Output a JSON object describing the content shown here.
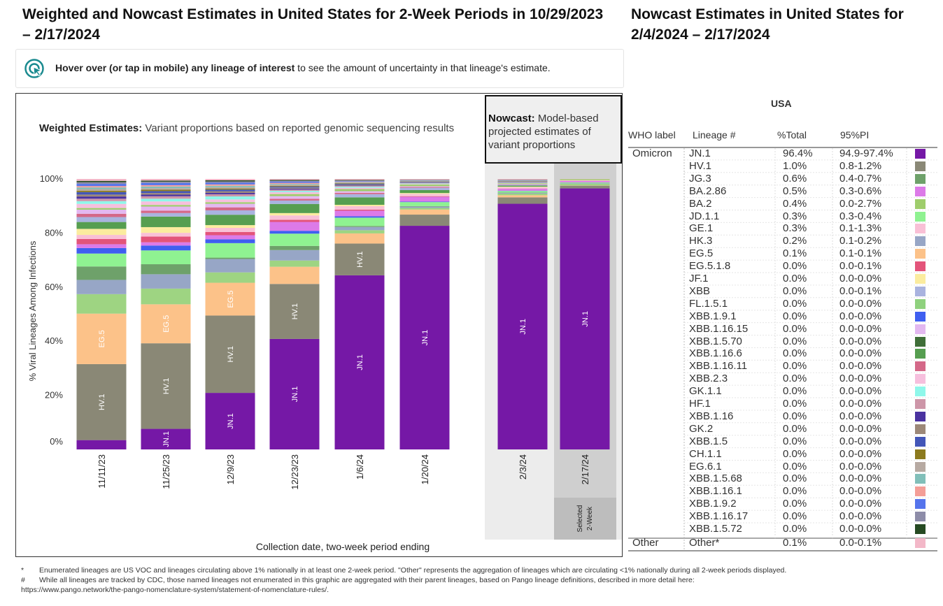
{
  "titles": {
    "left": "Weighted and Nowcast Estimates in United States for 2-Week Periods in 10/29/2023 – 2/17/2024",
    "right": "Nowcast Estimates in United States for 2/4/2024 – 2/17/2024"
  },
  "hover_note": {
    "bold": "Hover over (or tap in mobile) any lineage of interest",
    "rest": " to see the amount of uncertainty in that lineage's estimate."
  },
  "weighted_panel": {
    "label_bold": "Weighted Estimates:",
    "label_rest": " Variant proportions based on reported genomic sequencing results"
  },
  "nowcast_panel": {
    "label_bold": "Nowcast:",
    "label_rest": " Model-based projected estimates of variant proportions"
  },
  "selected_label": "Selected 2-Week",
  "selected_line1": "Selected",
  "selected_line2": "2-Week",
  "chart_data": {
    "type": "bar",
    "stacked": true,
    "ylabel": "% Viral Lineages Among Infections",
    "xlabel": "Collection date, two-week period ending",
    "ylim": [
      0,
      100
    ],
    "yticks": [
      "0%",
      "20%",
      "40%",
      "60%",
      "80%",
      "100%"
    ],
    "categories": [
      "11/11/23",
      "11/25/23",
      "12/9/23",
      "12/23/23",
      "1/6/24",
      "1/20/24",
      "2/3/24",
      "2/17/24"
    ],
    "nowcast_categories": [
      "2/3/24",
      "2/17/24"
    ],
    "selected_category": "2/17/24",
    "series": [
      {
        "name": "JN.1",
        "color": "#7518a6",
        "values": [
          3.4,
          7.6,
          20.7,
          42.4,
          65.2,
          84.0,
          92.0,
          96.4
        ]
      },
      {
        "name": "HV.1",
        "color": "#8a8876",
        "values": [
          27.7,
          31.6,
          28.3,
          21.1,
          11.9,
          4.2,
          2.4,
          1.0
        ]
      },
      {
        "name": "EG.5",
        "color": "#fcc289",
        "values": [
          18.4,
          14.4,
          12.0,
          6.6,
          3.8,
          1.9,
          0.8,
          0.1
        ]
      },
      {
        "name": "JG.3",
        "color": "#9ed482",
        "values": [
          7.1,
          5.8,
          3.8,
          2.4,
          1.2,
          0.6,
          0.6,
          0.6
        ]
      },
      {
        "name": "HK.3",
        "color": "#97a6c6",
        "values": [
          5.2,
          5.3,
          4.9,
          4.0,
          1.2,
          0.5,
          0.3,
          0.2
        ]
      },
      {
        "name": "XBB.1.5.70",
        "color": "#6ea16a",
        "values": [
          4.9,
          3.7,
          0.5,
          1.6,
          0.4,
          0.2,
          0.1,
          0.0
        ]
      },
      {
        "name": "JD.1.1",
        "color": "#8ff291",
        "values": [
          4.7,
          5.1,
          5.3,
          4.7,
          3.1,
          1.5,
          0.6,
          0.3
        ]
      },
      {
        "name": "XBB.1.9.1",
        "color": "#3f5ff0",
        "values": [
          2.0,
          1.8,
          1.4,
          1.1,
          0.5,
          0.2,
          0.1,
          0.0
        ]
      },
      {
        "name": "BA.2.86",
        "color": "#dc7ae8",
        "values": [
          1.4,
          1.2,
          1.5,
          3.4,
          2.1,
          1.8,
          0.7,
          0.5
        ]
      },
      {
        "name": "EG.5.1.8",
        "color": "#e3547a",
        "values": [
          1.9,
          2.1,
          1.2,
          0.8,
          0.4,
          0.2,
          0.1,
          0.0
        ]
      },
      {
        "name": "GE.1",
        "color": "#f9c0d6",
        "values": [
          1.5,
          1.4,
          1.5,
          1.7,
          1.3,
          0.9,
          0.5,
          0.3
        ]
      },
      {
        "name": "JF.1",
        "color": "#fbec9f",
        "values": [
          2.2,
          2.1,
          1.0,
          0.9,
          0.5,
          0.3,
          0.2,
          0.0
        ]
      },
      {
        "name": "XBB.1.16.6",
        "color": "#569e50",
        "values": [
          2.5,
          3.9,
          3.8,
          3.5,
          2.8,
          1.1,
          0.4,
          0.0
        ]
      },
      {
        "name": "XBB",
        "color": "#a9b3df",
        "values": [
          1.8,
          1.3,
          1.6,
          1.3,
          1.2,
          0.9,
          0.3,
          0.0
        ]
      },
      {
        "name": "XBB.1.16.11",
        "color": "#d46888",
        "values": [
          1.2,
          0.9,
          1.1,
          0.7,
          0.5,
          0.3,
          0.1,
          0.0
        ]
      },
      {
        "name": "XBB.1.16.15",
        "color": "#e3b8f0",
        "values": [
          1.5,
          1.5,
          1.3,
          1.0,
          0.6,
          0.3,
          0.2,
          0.0
        ]
      },
      {
        "name": "BA.2",
        "color": "#9fcd6c",
        "values": [
          0.6,
          0.6,
          0.6,
          0.8,
          0.8,
          0.6,
          0.3,
          0.4
        ]
      },
      {
        "name": "XBB.2.3",
        "color": "#f6bfdd",
        "values": [
          1.5,
          1.3,
          1.0,
          0.7,
          0.5,
          0.2,
          0.1,
          0.0
        ]
      },
      {
        "name": "GK.1.1",
        "color": "#8ff7ea",
        "values": [
          1.0,
          1.0,
          1.1,
          0.5,
          0.4,
          0.2,
          0.1,
          0.0
        ]
      },
      {
        "name": "HF.1",
        "color": "#cd96a8",
        "values": [
          0.9,
          0.9,
          0.8,
          0.5,
          0.3,
          0.2,
          0.1,
          0.0
        ]
      },
      {
        "name": "XBB.1.16",
        "color": "#4a32a0",
        "values": [
          0.8,
          0.6,
          0.5,
          0.4,
          0.2,
          0.1,
          0.1,
          0.0
        ]
      },
      {
        "name": "GK.2",
        "color": "#9c8878",
        "values": [
          0.7,
          0.6,
          0.6,
          0.4,
          0.3,
          0.2,
          0.1,
          0.0
        ]
      },
      {
        "name": "XBB.1.5",
        "color": "#4356b8",
        "values": [
          0.9,
          0.7,
          0.6,
          0.4,
          0.3,
          0.2,
          0.1,
          0.0
        ]
      },
      {
        "name": "CH.1.1",
        "color": "#8c7a1e",
        "values": [
          0.5,
          0.5,
          0.4,
          0.3,
          0.2,
          0.1,
          0.1,
          0.0
        ]
      },
      {
        "name": "EG.6.1",
        "color": "#b7aaa2",
        "values": [
          0.6,
          0.6,
          0.5,
          0.4,
          0.2,
          0.1,
          0.1,
          0.0
        ]
      },
      {
        "name": "XBB.1.5.68",
        "color": "#81bfb9",
        "values": [
          0.6,
          0.6,
          0.5,
          0.3,
          0.2,
          0.1,
          0.1,
          0.0
        ]
      },
      {
        "name": "XBB.1.16.1",
        "color": "#f49e97",
        "values": [
          0.5,
          0.5,
          0.5,
          0.4,
          0.2,
          0.1,
          0.1,
          0.0
        ]
      },
      {
        "name": "XBB.1.9.2",
        "color": "#5574ec",
        "values": [
          0.8,
          0.8,
          0.6,
          0.5,
          0.2,
          0.1,
          0.1,
          0.0
        ]
      },
      {
        "name": "XBB.1.16.17",
        "color": "#8d8ca8",
        "values": [
          0.6,
          0.5,
          0.5,
          0.3,
          0.2,
          0.1,
          0.1,
          0.0
        ]
      },
      {
        "name": "XBB.1.5.72",
        "color": "#264a22",
        "values": [
          0.5,
          0.4,
          0.4,
          0.3,
          0.2,
          0.1,
          0.1,
          0.0
        ]
      },
      {
        "name": "Other*",
        "color": "#f3b8c8",
        "values": [
          0.7,
          0.6,
          0.5,
          0.4,
          0.4,
          0.3,
          0.3,
          0.1
        ]
      }
    ],
    "bar_labels": [
      {
        "category": "11/11/23",
        "series": "HV.1",
        "text": "HV.1"
      },
      {
        "category": "11/11/23",
        "series": "EG.5",
        "text": "EG.5"
      },
      {
        "category": "11/25/23",
        "series": "JN.1",
        "text": "JN.1"
      },
      {
        "category": "11/25/23",
        "series": "HV.1",
        "text": "HV.1"
      },
      {
        "category": "11/25/23",
        "series": "EG.5",
        "text": "EG.5"
      },
      {
        "category": "12/9/23",
        "series": "JN.1",
        "text": "JN.1"
      },
      {
        "category": "12/9/23",
        "series": "HV.1",
        "text": "HV.1"
      },
      {
        "category": "12/9/23",
        "series": "EG.5",
        "text": "EG.5"
      },
      {
        "category": "12/23/23",
        "series": "JN.1",
        "text": "JN.1"
      },
      {
        "category": "12/23/23",
        "series": "HV.1",
        "text": "HV.1"
      },
      {
        "category": "1/6/24",
        "series": "JN.1",
        "text": "JN.1"
      },
      {
        "category": "1/6/24",
        "series": "HV.1",
        "text": "HV.1"
      },
      {
        "category": "1/20/24",
        "series": "JN.1",
        "text": "JN.1"
      },
      {
        "category": "2/3/24",
        "series": "JN.1",
        "text": "JN.1"
      },
      {
        "category": "2/17/24",
        "series": "JN.1",
        "text": "JN.1"
      }
    ]
  },
  "table": {
    "region": "USA",
    "headers": [
      "WHO label",
      "Lineage #",
      "%Total",
      "95%PI"
    ],
    "rows": [
      {
        "who": "Omicron",
        "lineage": "JN.1",
        "total": "96.4%",
        "pi": "94.9-97.4%",
        "color": "#7518a6"
      },
      {
        "who": "",
        "lineage": "HV.1",
        "total": "1.0%",
        "pi": "0.8-1.2%",
        "color": "#8a8876"
      },
      {
        "who": "",
        "lineage": "JG.3",
        "total": "0.6%",
        "pi": "0.4-0.7%",
        "color": "#6ea16a"
      },
      {
        "who": "",
        "lineage": "BA.2.86",
        "total": "0.5%",
        "pi": "0.3-0.6%",
        "color": "#dc7ae8"
      },
      {
        "who": "",
        "lineage": "BA.2",
        "total": "0.4%",
        "pi": "0.0-2.7%",
        "color": "#9fcd6c"
      },
      {
        "who": "",
        "lineage": "JD.1.1",
        "total": "0.3%",
        "pi": "0.3-0.4%",
        "color": "#8ff291"
      },
      {
        "who": "",
        "lineage": "GE.1",
        "total": "0.3%",
        "pi": "0.1-1.3%",
        "color": "#f9c0d6"
      },
      {
        "who": "",
        "lineage": "HK.3",
        "total": "0.2%",
        "pi": "0.1-0.2%",
        "color": "#97a6c6"
      },
      {
        "who": "",
        "lineage": "EG.5",
        "total": "0.1%",
        "pi": "0.1-0.1%",
        "color": "#fcc289"
      },
      {
        "who": "",
        "lineage": "EG.5.1.8",
        "total": "0.0%",
        "pi": "0.0-0.1%",
        "color": "#e3547a"
      },
      {
        "who": "",
        "lineage": "JF.1",
        "total": "0.0%",
        "pi": "0.0-0.0%",
        "color": "#fbec9f"
      },
      {
        "who": "",
        "lineage": "XBB",
        "total": "0.0%",
        "pi": "0.0-0.1%",
        "color": "#a9b3df"
      },
      {
        "who": "",
        "lineage": "FL.1.5.1",
        "total": "0.0%",
        "pi": "0.0-0.0%",
        "color": "#8fd17e"
      },
      {
        "who": "",
        "lineage": "XBB.1.9.1",
        "total": "0.0%",
        "pi": "0.0-0.0%",
        "color": "#3f5ff0"
      },
      {
        "who": "",
        "lineage": "XBB.1.16.15",
        "total": "0.0%",
        "pi": "0.0-0.0%",
        "color": "#e3b8f0"
      },
      {
        "who": "",
        "lineage": "XBB.1.5.70",
        "total": "0.0%",
        "pi": "0.0-0.0%",
        "color": "#3f6e38"
      },
      {
        "who": "",
        "lineage": "XBB.1.16.6",
        "total": "0.0%",
        "pi": "0.0-0.0%",
        "color": "#569e50"
      },
      {
        "who": "",
        "lineage": "XBB.1.16.11",
        "total": "0.0%",
        "pi": "0.0-0.0%",
        "color": "#d46888"
      },
      {
        "who": "",
        "lineage": "XBB.2.3",
        "total": "0.0%",
        "pi": "0.0-0.0%",
        "color": "#f6bfdd"
      },
      {
        "who": "",
        "lineage": "GK.1.1",
        "total": "0.0%",
        "pi": "0.0-0.0%",
        "color": "#8ff7ea"
      },
      {
        "who": "",
        "lineage": "HF.1",
        "total": "0.0%",
        "pi": "0.0-0.0%",
        "color": "#cd96a8"
      },
      {
        "who": "",
        "lineage": "XBB.1.16",
        "total": "0.0%",
        "pi": "0.0-0.0%",
        "color": "#4a32a0"
      },
      {
        "who": "",
        "lineage": "GK.2",
        "total": "0.0%",
        "pi": "0.0-0.0%",
        "color": "#9c8878"
      },
      {
        "who": "",
        "lineage": "XBB.1.5",
        "total": "0.0%",
        "pi": "0.0-0.0%",
        "color": "#4356b8"
      },
      {
        "who": "",
        "lineage": "CH.1.1",
        "total": "0.0%",
        "pi": "0.0-0.0%",
        "color": "#8c7a1e"
      },
      {
        "who": "",
        "lineage": "EG.6.1",
        "total": "0.0%",
        "pi": "0.0-0.0%",
        "color": "#b7aaa2"
      },
      {
        "who": "",
        "lineage": "XBB.1.5.68",
        "total": "0.0%",
        "pi": "0.0-0.0%",
        "color": "#81bfb9"
      },
      {
        "who": "",
        "lineage": "XBB.1.16.1",
        "total": "0.0%",
        "pi": "0.0-0.0%",
        "color": "#f49e97"
      },
      {
        "who": "",
        "lineage": "XBB.1.9.2",
        "total": "0.0%",
        "pi": "0.0-0.0%",
        "color": "#5574ec"
      },
      {
        "who": "",
        "lineage": "XBB.1.16.17",
        "total": "0.0%",
        "pi": "0.0-0.0%",
        "color": "#8d8ca8"
      },
      {
        "who": "",
        "lineage": "XBB.1.5.72",
        "total": "0.0%",
        "pi": "0.0-0.0%",
        "color": "#264a22"
      },
      {
        "who": "Other",
        "lineage": "Other*",
        "total": "0.1%",
        "pi": "0.0-0.1%",
        "color": "#f3b8c8"
      }
    ]
  },
  "footnotes": [
    {
      "mark": "*",
      "text": "Enumerated lineages are US VOC and lineages circulating above 1% nationally in at least one 2-week period. \"Other\" represents the aggregation of lineages which are circulating <1% nationally during all 2-week periods displayed."
    },
    {
      "mark": "#",
      "text": "While all lineages are tracked by CDC, those named lineages not enumerated in this graphic are aggregated with their parent lineages, based on Pango lineage definitions, described in more detail here:"
    },
    {
      "mark": "",
      "text": "https://www.pango.network/the-pango-nomenclature-system/statement-of-nomenclature-rules/."
    }
  ]
}
